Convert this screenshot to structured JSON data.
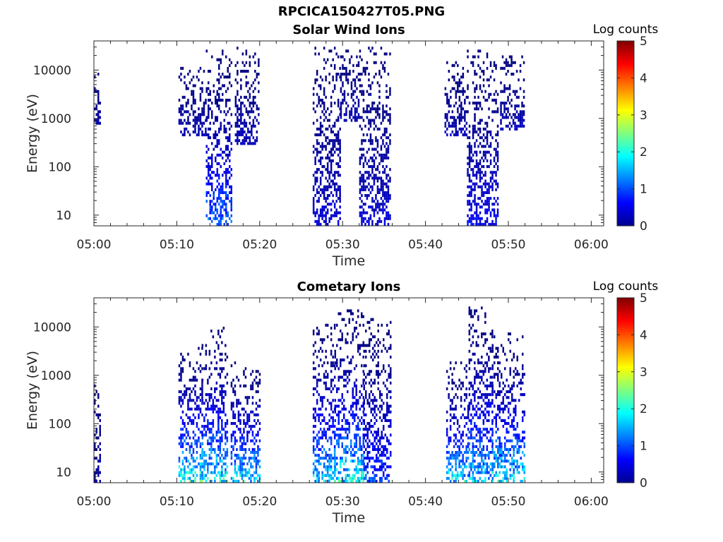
{
  "figure_title": "RPCICA150427T05.PNG",
  "chart_data": [
    {
      "type": "heatmap",
      "title": "Solar Wind Ions",
      "xlabel": "Time",
      "ylabel": "Energy (eV)",
      "x_ticks": [
        "05:00",
        "05:10",
        "05:20",
        "05:30",
        "05:40",
        "05:50",
        "06:00"
      ],
      "x_range_min": [
        0,
        61.5
      ],
      "y_scale": "log",
      "y_ticks": [
        "10",
        "100",
        "1000",
        "10000"
      ],
      "y_range_eV": [
        6,
        40000
      ],
      "colorbar": {
        "label": "Log counts",
        "ticks": [
          "0",
          "1",
          "2",
          "3",
          "4",
          "5"
        ],
        "range": [
          0,
          5
        ],
        "colormap": "jet"
      },
      "background": "#ffffff",
      "activity_clusters": [
        {
          "t_start_min": 0.0,
          "t_end_min": 0.7,
          "e_low_eV": 700,
          "e_high_eV": 9000,
          "peak_log_counts": 0.4
        },
        {
          "t_start_min": 10.2,
          "t_end_min": 13.5,
          "e_low_eV": 400,
          "e_high_eV": 12000,
          "peak_log_counts": 0.4
        },
        {
          "t_start_min": 13.5,
          "t_end_min": 16.5,
          "e_low_eV": 6,
          "e_high_eV": 25000,
          "peak_log_counts": 1.6
        },
        {
          "t_start_min": 17.0,
          "t_end_min": 19.8,
          "e_low_eV": 300,
          "e_high_eV": 30000,
          "peak_log_counts": 0.4
        },
        {
          "t_start_min": 26.4,
          "t_end_min": 29.7,
          "e_low_eV": 6,
          "e_high_eV": 30000,
          "peak_log_counts": 0.6
        },
        {
          "t_start_min": 29.7,
          "t_end_min": 32.0,
          "e_low_eV": 800,
          "e_high_eV": 25000,
          "peak_log_counts": 0.4
        },
        {
          "t_start_min": 32.0,
          "t_end_min": 35.8,
          "e_low_eV": 6,
          "e_high_eV": 30000,
          "peak_log_counts": 0.6
        },
        {
          "t_start_min": 42.3,
          "t_end_min": 45.0,
          "e_low_eV": 400,
          "e_high_eV": 15000,
          "peak_log_counts": 0.4
        },
        {
          "t_start_min": 45.0,
          "t_end_min": 48.8,
          "e_low_eV": 6,
          "e_high_eV": 30000,
          "peak_log_counts": 0.8
        },
        {
          "t_start_min": 49.0,
          "t_end_min": 51.8,
          "e_low_eV": 600,
          "e_high_eV": 20000,
          "peak_log_counts": 0.4
        }
      ]
    },
    {
      "type": "heatmap",
      "title": "Cometary Ions",
      "xlabel": "Time",
      "ylabel": "Energy (eV)",
      "x_ticks": [
        "05:00",
        "05:10",
        "05:20",
        "05:30",
        "05:40",
        "05:50",
        "06:00"
      ],
      "x_range_min": [
        0,
        61.5
      ],
      "y_scale": "log",
      "y_ticks": [
        "10",
        "100",
        "1000",
        "10000"
      ],
      "y_range_eV": [
        6,
        40000
      ],
      "colorbar": {
        "label": "Log counts",
        "ticks": [
          "0",
          "1",
          "2",
          "3",
          "4",
          "5"
        ],
        "range": [
          0,
          5
        ],
        "colormap": "jet"
      },
      "background": "#ffffff",
      "activity_clusters": [
        {
          "t_start_min": 0.0,
          "t_end_min": 0.7,
          "e_low_eV": 6,
          "e_high_eV": 700,
          "peak_log_counts": 0.4
        },
        {
          "t_start_min": 10.2,
          "t_end_min": 13.0,
          "e_low_eV": 6,
          "e_high_eV": 4000,
          "peak_log_counts": 2.8
        },
        {
          "t_start_min": 13.0,
          "t_end_min": 16.0,
          "e_low_eV": 6,
          "e_high_eV": 10000,
          "peak_log_counts": 2.6
        },
        {
          "t_start_min": 16.5,
          "t_end_min": 20.0,
          "e_low_eV": 6,
          "e_high_eV": 2000,
          "peak_log_counts": 2.5
        },
        {
          "t_start_min": 26.4,
          "t_end_min": 29.0,
          "e_low_eV": 6,
          "e_high_eV": 12000,
          "peak_log_counts": 2.3
        },
        {
          "t_start_min": 29.0,
          "t_end_min": 32.5,
          "e_low_eV": 6,
          "e_high_eV": 22000,
          "peak_log_counts": 2.5
        },
        {
          "t_start_min": 32.5,
          "t_end_min": 35.8,
          "e_low_eV": 6,
          "e_high_eV": 15000,
          "peak_log_counts": 1.3
        },
        {
          "t_start_min": 42.5,
          "t_end_min": 45.2,
          "e_low_eV": 6,
          "e_high_eV": 2000,
          "peak_log_counts": 2.5
        },
        {
          "t_start_min": 45.2,
          "t_end_min": 48.0,
          "e_low_eV": 6,
          "e_high_eV": 25000,
          "peak_log_counts": 2.2
        },
        {
          "t_start_min": 48.0,
          "t_end_min": 52.0,
          "e_low_eV": 6,
          "e_high_eV": 8000,
          "peak_log_counts": 2.6
        }
      ]
    }
  ]
}
